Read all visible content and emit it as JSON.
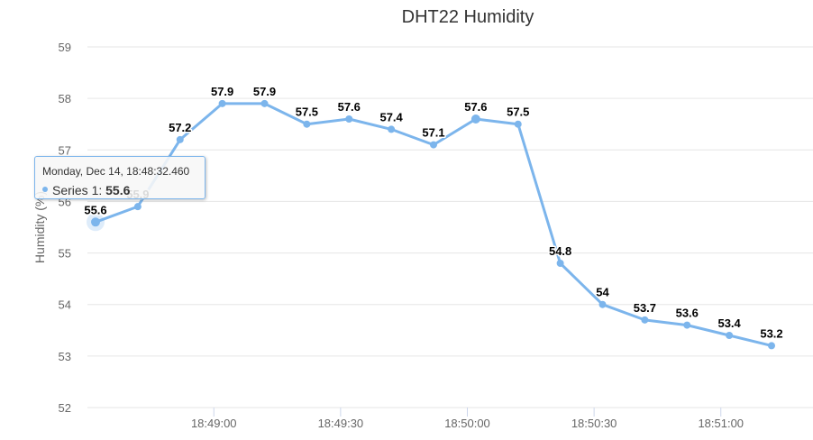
{
  "chart_data": {
    "type": "line",
    "title": "DHT22 Humidity",
    "ylabel": "Humidity (%)",
    "xlabel": "",
    "ylim": [
      52,
      59
    ],
    "y_ticks": [
      "52",
      "53",
      "54",
      "55",
      "56",
      "57",
      "58",
      "59"
    ],
    "xlim": [
      "18:48:32",
      "18:51:12"
    ],
    "x_ticks": [
      "18:49:00",
      "18:49:30",
      "18:50:00",
      "18:50:30",
      "18:51:00"
    ],
    "grid": true,
    "series": [
      {
        "name": "Series 1",
        "x": [
          "18:48:32",
          "18:48:42",
          "18:48:52",
          "18:49:02",
          "18:49:12",
          "18:49:22",
          "18:49:32",
          "18:49:42",
          "18:49:52",
          "18:50:02",
          "18:50:12",
          "18:50:22",
          "18:50:32",
          "18:50:42",
          "18:50:52",
          "18:51:02",
          "18:51:12"
        ],
        "values": [
          55.6,
          55.9,
          57.2,
          57.9,
          57.9,
          57.5,
          57.6,
          57.4,
          57.1,
          57.6,
          57.5,
          54.8,
          54,
          53.7,
          53.6,
          53.4,
          53.2
        ],
        "labels": [
          "55.6",
          "55.9",
          "57.2",
          "57.9",
          "57.9",
          "57.5",
          "57.6",
          "57.4",
          "57.1",
          "57.6",
          "57.5",
          "54.8",
          "54",
          "53.7",
          "53.6",
          "53.4",
          "53.2"
        ]
      }
    ],
    "colors": {
      "line": "#7cb5ec",
      "grid": "#e6e6e6",
      "label": "#000000"
    }
  },
  "tooltip": {
    "header": "Monday, Dec 14, 18:48:32.460",
    "series_label": "Series 1: ",
    "value": "55.6"
  }
}
